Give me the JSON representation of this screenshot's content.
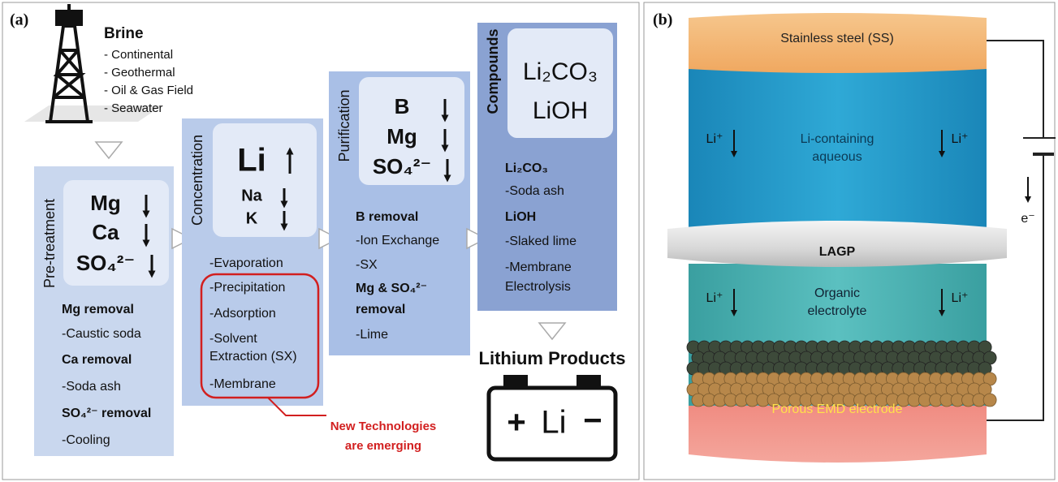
{
  "panel_a": {
    "label": "(a)",
    "brine": {
      "title": "Brine",
      "sources": [
        "- Continental",
        "- Geothermal",
        "- Oil & Gas Field",
        "- Seawater"
      ]
    },
    "stages": [
      {
        "name": "Pre-treatment",
        "targets": [
          "Mg",
          "Ca",
          "SO₄²⁻"
        ],
        "methods": [
          "Mg removal",
          "-Caustic soda",
          "Ca removal",
          "-Soda ash",
          "SO₄²⁻ removal",
          "-Cooling"
        ]
      },
      {
        "name": "Concentration",
        "targets": [
          "Li",
          "Na",
          "K"
        ],
        "methods": [
          "-Evaporation",
          "-Precipitation",
          "-Adsorption",
          "-Solvent",
          "Extraction (SX)",
          "-Membrane"
        ]
      },
      {
        "name": "Purification",
        "targets": [
          "B",
          "Mg",
          "SO₄²⁻"
        ],
        "methods": [
          "B removal",
          "-Ion Exchange",
          "-SX",
          "Mg & SO₄²⁻",
          "removal",
          "-Lime"
        ]
      },
      {
        "name": "Compounds",
        "targets": [
          "Li₂CO₃",
          "LiOH"
        ],
        "methods": [
          "Li₂CO₃",
          "-Soda ash",
          "LiOH",
          "-Slaked lime",
          "-Membrane",
          "Electrolysis"
        ]
      }
    ],
    "note": [
      "New Technologies",
      "are emerging"
    ],
    "output": "Lithium Products",
    "battery": {
      "plus": "+",
      "label": "Li",
      "minus": "−"
    }
  },
  "panel_b": {
    "label": "(b)",
    "layers": {
      "top": "Stainless steel (SS)",
      "aqueous": [
        "Li-containing",
        "aqueous"
      ],
      "separator": "LAGP",
      "organic": [
        "Organic",
        "electrolyte"
      ],
      "electrode": "Porous EMD electrode"
    },
    "ion": "Li⁺",
    "electron": "e⁻"
  }
}
